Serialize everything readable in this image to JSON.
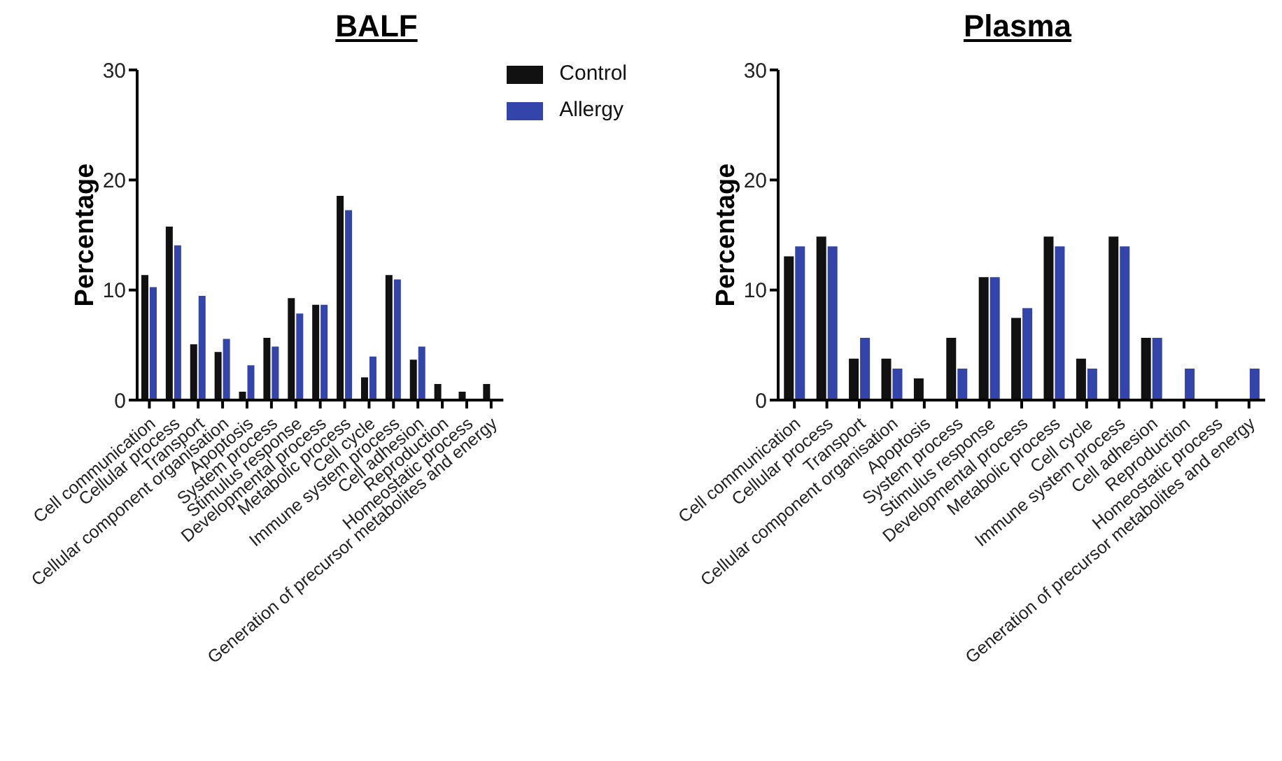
{
  "chart_data": [
    {
      "type": "bar",
      "title": "BALF",
      "ylabel": "Percentage",
      "categories": [
        "Cell communication",
        "Cellular process",
        "Transport",
        "Cellular component organisation",
        "Apoptosis",
        "System process",
        "Stimulus response",
        "Developmental process",
        "Metabolic process",
        "Cell cycle",
        "Immune system process",
        "Cell adhesion",
        "Reproduction",
        "Homeostatic process",
        "Generation of precursor metabolites and energy"
      ],
      "series": [
        {
          "name": "Control",
          "color": "#111111",
          "values": [
            11.3,
            15.7,
            5.0,
            4.3,
            0.7,
            5.6,
            9.2,
            8.6,
            18.5,
            2.0,
            11.3,
            3.6,
            1.4,
            0.7,
            1.4
          ]
        },
        {
          "name": "Allergy",
          "color": "#3344aa",
          "values": [
            10.2,
            14.0,
            9.4,
            5.5,
            3.1,
            4.8,
            7.8,
            8.6,
            17.2,
            3.9,
            10.9,
            4.8,
            0,
            0,
            0
          ]
        }
      ],
      "ylim": [
        0,
        30
      ],
      "yticks": [
        0,
        10,
        20,
        30
      ],
      "grid": false,
      "legend": "top right"
    },
    {
      "type": "bar",
      "title": "Plasma",
      "ylabel": "Percentage",
      "categories": [
        "Cell communication",
        "Cellular process",
        "Transport",
        "Cellular component organisation",
        "Apoptosis",
        "System process",
        "Stimulus response",
        "Developmental process",
        "Metabolic process",
        "Cell cycle",
        "Immune system process",
        "Cell adhesion",
        "Reproduction",
        "Homeostatic process",
        "Generation of precursor metabolites and energy"
      ],
      "series": [
        {
          "color": "#111111",
          "values": [
            13.0,
            14.8,
            3.7,
            3.7,
            1.9,
            5.6,
            11.1,
            7.4,
            14.8,
            3.7,
            14.8,
            5.6,
            0,
            0,
            0
          ]
        },
        {
          "color": "#3344aa",
          "values": [
            13.9,
            13.9,
            5.6,
            2.8,
            0,
            2.8,
            11.1,
            8.3,
            13.9,
            2.8,
            13.9,
            5.6,
            2.8,
            0,
            2.8
          ]
        }
      ],
      "ylim": [
        0,
        30
      ],
      "yticks": [
        0,
        10,
        20,
        30
      ],
      "grid": false,
      "legend": false
    }
  ]
}
